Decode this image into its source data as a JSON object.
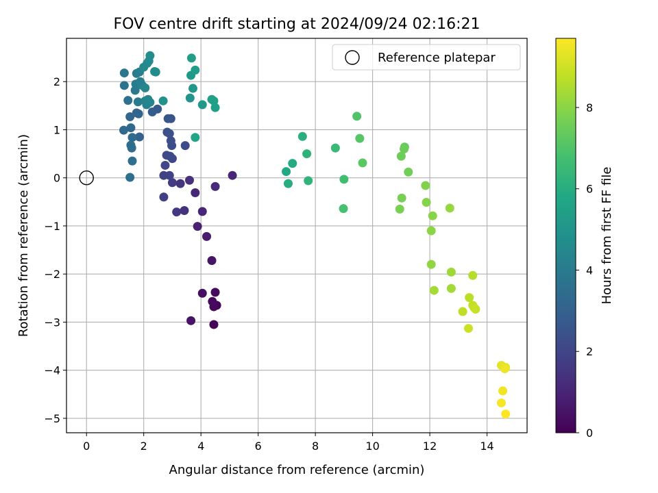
{
  "chart_data": {
    "type": "scatter",
    "title": "FOV centre drift starting at 2024/09/24 02:16:21",
    "xlabel": "Angular distance from reference (arcmin)",
    "ylabel": "Rotation from reference (arcmin)",
    "xlim": [
      -0.7,
      15.4
    ],
    "ylim": [
      -5.3,
      2.9
    ],
    "xticks": [
      0,
      2,
      4,
      6,
      8,
      10,
      12,
      14
    ],
    "yticks": [
      -5,
      -4,
      -3,
      -2,
      -1,
      0,
      1,
      2
    ],
    "grid": true,
    "legend": {
      "position": "top-right",
      "entries": [
        "Reference platepar"
      ]
    },
    "reference_point": {
      "x": 0,
      "y": 0,
      "label": "Reference platepar"
    },
    "colorbar": {
      "label": "Hours from first FF file",
      "colormap": "viridis",
      "range": [
        0,
        9.7
      ],
      "ticks": [
        0,
        2,
        4,
        6,
        8
      ]
    },
    "points": [
      {
        "x": 4.45,
        "y": -3.05,
        "c": 0.1
      },
      {
        "x": 4.55,
        "y": -2.65,
        "c": 0.15
      },
      {
        "x": 4.45,
        "y": -2.68,
        "c": 0.2
      },
      {
        "x": 4.4,
        "y": -2.57,
        "c": 0.25
      },
      {
        "x": 4.5,
        "y": -2.38,
        "c": 0.3
      },
      {
        "x": 4.05,
        "y": -2.4,
        "c": 0.35
      },
      {
        "x": 3.65,
        "y": -2.97,
        "c": 0.5
      },
      {
        "x": 4.38,
        "y": -1.72,
        "c": 0.55
      },
      {
        "x": 4.2,
        "y": -1.22,
        "c": 0.75
      },
      {
        "x": 3.88,
        "y": -1.01,
        "c": 0.9
      },
      {
        "x": 4.05,
        "y": -0.7,
        "c": 1.0
      },
      {
        "x": 3.8,
        "y": -0.31,
        "c": 1.1
      },
      {
        "x": 4.5,
        "y": -0.18,
        "c": 1.2
      },
      {
        "x": 5.1,
        "y": 0.05,
        "c": 1.05
      },
      {
        "x": 3.6,
        "y": -0.05,
        "c": 1.3
      },
      {
        "x": 3.42,
        "y": -0.68,
        "c": 1.4
      },
      {
        "x": 3.28,
        "y": -0.12,
        "c": 1.5
      },
      {
        "x": 3.15,
        "y": -0.71,
        "c": 1.6
      },
      {
        "x": 3.0,
        "y": -0.1,
        "c": 1.7
      },
      {
        "x": 2.7,
        "y": -0.4,
        "c": 1.8
      },
      {
        "x": 2.7,
        "y": 0.05,
        "c": 1.85
      },
      {
        "x": 2.9,
        "y": 0.05,
        "c": 1.9
      },
      {
        "x": 2.75,
        "y": 0.26,
        "c": 2.0
      },
      {
        "x": 3.0,
        "y": 0.4,
        "c": 2.05
      },
      {
        "x": 2.8,
        "y": 0.47,
        "c": 2.1
      },
      {
        "x": 2.92,
        "y": 0.45,
        "c": 2.15
      },
      {
        "x": 3.45,
        "y": 0.67,
        "c": 2.2
      },
      {
        "x": 2.98,
        "y": 0.67,
        "c": 2.25
      },
      {
        "x": 2.95,
        "y": 0.77,
        "c": 2.3
      },
      {
        "x": 2.82,
        "y": 0.95,
        "c": 2.4
      },
      {
        "x": 2.9,
        "y": 0.92,
        "c": 2.45
      },
      {
        "x": 2.95,
        "y": 1.23,
        "c": 2.5
      },
      {
        "x": 2.85,
        "y": 1.23,
        "c": 2.6
      },
      {
        "x": 2.48,
        "y": 1.43,
        "c": 2.7
      },
      {
        "x": 2.3,
        "y": 1.37,
        "c": 2.8
      },
      {
        "x": 1.85,
        "y": 0.85,
        "c": 3.0
      },
      {
        "x": 1.75,
        "y": 1.35,
        "c": 3.1
      },
      {
        "x": 1.82,
        "y": 1.33,
        "c": 3.15
      },
      {
        "x": 1.52,
        "y": 1.27,
        "c": 3.2
      },
      {
        "x": 1.55,
        "y": 1.04,
        "c": 3.25
      },
      {
        "x": 1.3,
        "y": 0.99,
        "c": 3.3
      },
      {
        "x": 1.6,
        "y": 0.84,
        "c": 3.35
      },
      {
        "x": 1.55,
        "y": 0.68,
        "c": 3.4
      },
      {
        "x": 1.58,
        "y": 0.62,
        "c": 3.45
      },
      {
        "x": 1.6,
        "y": 0.35,
        "c": 3.5
      },
      {
        "x": 1.52,
        "y": 0.01,
        "c": 3.55
      },
      {
        "x": 1.45,
        "y": 1.61,
        "c": 3.6
      },
      {
        "x": 1.32,
        "y": 1.92,
        "c": 3.7
      },
      {
        "x": 1.32,
        "y": 2.18,
        "c": 3.8
      },
      {
        "x": 1.7,
        "y": 1.82,
        "c": 3.9
      },
      {
        "x": 1.8,
        "y": 1.58,
        "c": 3.95
      },
      {
        "x": 1.72,
        "y": 1.95,
        "c": 4.0
      },
      {
        "x": 1.75,
        "y": 2.17,
        "c": 4.05
      },
      {
        "x": 1.85,
        "y": 2.2,
        "c": 4.1
      },
      {
        "x": 1.88,
        "y": 2.0,
        "c": 4.15
      },
      {
        "x": 1.95,
        "y": 1.92,
        "c": 4.2
      },
      {
        "x": 2.05,
        "y": 1.6,
        "c": 4.25
      },
      {
        "x": 2.1,
        "y": 1.52,
        "c": 4.3
      },
      {
        "x": 2.22,
        "y": 1.57,
        "c": 4.35
      },
      {
        "x": 2.15,
        "y": 1.63,
        "c": 4.4
      },
      {
        "x": 2.05,
        "y": 1.87,
        "c": 4.45
      },
      {
        "x": 2.0,
        "y": 2.3,
        "c": 4.5
      },
      {
        "x": 2.12,
        "y": 2.38,
        "c": 4.55
      },
      {
        "x": 2.18,
        "y": 2.43,
        "c": 4.6
      },
      {
        "x": 2.22,
        "y": 2.54,
        "c": 4.65
      },
      {
        "x": 2.42,
        "y": 2.2,
        "c": 4.7
      },
      {
        "x": 2.38,
        "y": 2.21,
        "c": 4.75
      },
      {
        "x": 2.68,
        "y": 1.6,
        "c": 4.85
      },
      {
        "x": 3.62,
        "y": 1.66,
        "c": 5.0
      },
      {
        "x": 3.72,
        "y": 1.86,
        "c": 5.1
      },
      {
        "x": 4.05,
        "y": 1.52,
        "c": 5.15
      },
      {
        "x": 3.65,
        "y": 2.13,
        "c": 5.2
      },
      {
        "x": 3.8,
        "y": 2.24,
        "c": 5.3
      },
      {
        "x": 3.67,
        "y": 2.49,
        "c": 5.35
      },
      {
        "x": 4.38,
        "y": 1.63,
        "c": 5.4
      },
      {
        "x": 4.45,
        "y": 1.6,
        "c": 5.45
      },
      {
        "x": 4.5,
        "y": 1.46,
        "c": 5.5
      },
      {
        "x": 3.8,
        "y": 0.84,
        "c": 5.7
      },
      {
        "x": 6.98,
        "y": 0.13,
        "c": 5.8
      },
      {
        "x": 7.2,
        "y": 0.3,
        "c": 5.9
      },
      {
        "x": 7.05,
        "y": -0.12,
        "c": 6.0
      },
      {
        "x": 7.55,
        "y": 0.86,
        "c": 6.1
      },
      {
        "x": 7.7,
        "y": 0.5,
        "c": 6.2
      },
      {
        "x": 7.75,
        "y": -0.06,
        "c": 6.3
      },
      {
        "x": 8.7,
        "y": 0.62,
        "c": 6.5
      },
      {
        "x": 9.0,
        "y": -0.03,
        "c": 6.7
      },
      {
        "x": 8.98,
        "y": -0.64,
        "c": 6.8
      },
      {
        "x": 9.45,
        "y": 1.28,
        "c": 7.0
      },
      {
        "x": 9.55,
        "y": 0.82,
        "c": 7.1
      },
      {
        "x": 9.65,
        "y": 0.31,
        "c": 7.2
      },
      {
        "x": 11.12,
        "y": 0.64,
        "c": 7.4
      },
      {
        "x": 11.1,
        "y": 0.6,
        "c": 7.5
      },
      {
        "x": 11.0,
        "y": 0.45,
        "c": 7.55
      },
      {
        "x": 11.25,
        "y": 0.12,
        "c": 7.6
      },
      {
        "x": 11.02,
        "y": -0.42,
        "c": 7.7
      },
      {
        "x": 10.95,
        "y": -0.65,
        "c": 7.75
      },
      {
        "x": 11.85,
        "y": -0.16,
        "c": 7.85
      },
      {
        "x": 11.88,
        "y": -0.51,
        "c": 7.9
      },
      {
        "x": 12.1,
        "y": -0.79,
        "c": 7.95
      },
      {
        "x": 12.05,
        "y": -1.1,
        "c": 8.0
      },
      {
        "x": 12.05,
        "y": -1.8,
        "c": 8.1
      },
      {
        "x": 12.7,
        "y": -0.63,
        "c": 8.15
      },
      {
        "x": 12.75,
        "y": -1.96,
        "c": 8.3
      },
      {
        "x": 12.75,
        "y": -2.3,
        "c": 8.35
      },
      {
        "x": 12.15,
        "y": -2.34,
        "c": 8.4
      },
      {
        "x": 13.5,
        "y": -2.03,
        "c": 8.6
      },
      {
        "x": 13.38,
        "y": -2.49,
        "c": 8.7
      },
      {
        "x": 13.15,
        "y": -2.78,
        "c": 8.75
      },
      {
        "x": 13.5,
        "y": -2.65,
        "c": 8.8
      },
      {
        "x": 13.55,
        "y": -2.7,
        "c": 8.85
      },
      {
        "x": 13.6,
        "y": -2.73,
        "c": 8.9
      },
      {
        "x": 13.35,
        "y": -3.13,
        "c": 8.95
      },
      {
        "x": 14.5,
        "y": -3.9,
        "c": 9.3
      },
      {
        "x": 14.65,
        "y": -3.94,
        "c": 9.4
      },
      {
        "x": 14.62,
        "y": -3.97,
        "c": 9.45
      },
      {
        "x": 14.55,
        "y": -4.43,
        "c": 9.5
      },
      {
        "x": 14.5,
        "y": -4.68,
        "c": 9.6
      },
      {
        "x": 14.65,
        "y": -4.91,
        "c": 9.7
      }
    ]
  }
}
